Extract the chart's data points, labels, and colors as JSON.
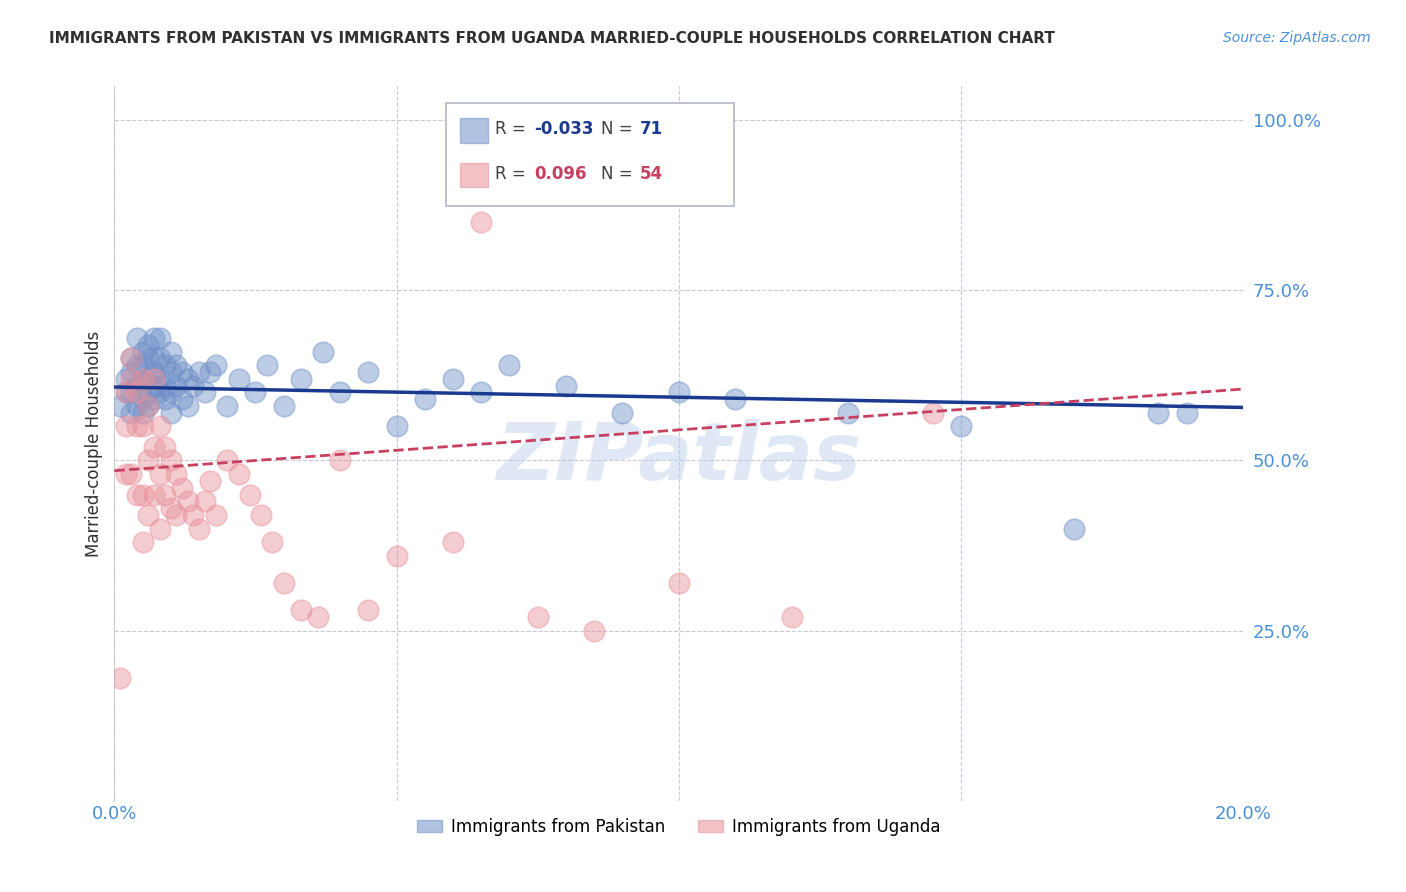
{
  "title": "IMMIGRANTS FROM PAKISTAN VS IMMIGRANTS FROM UGANDA MARRIED-COUPLE HOUSEHOLDS CORRELATION CHART",
  "source": "Source: ZipAtlas.com",
  "ylabel": "Married-couple Households",
  "xlim": [
    0.0,
    0.2
  ],
  "ylim": [
    0.0,
    1.05
  ],
  "yticks": [
    0.0,
    0.25,
    0.5,
    0.75,
    1.0
  ],
  "ytick_labels": [
    "",
    "25.0%",
    "50.0%",
    "75.0%",
    "100.0%"
  ],
  "xticks": [
    0.0,
    0.05,
    0.1,
    0.15,
    0.2
  ],
  "xtick_labels": [
    "0.0%",
    "",
    "",
    "",
    "20.0%"
  ],
  "series1_color": "#7090c8",
  "series2_color": "#e8909a",
  "trendline1_color": "#1a3a8f",
  "trendline2_color": "#c84060",
  "legend_label1": "Immigrants from Pakistan",
  "legend_label2": "Immigrants from Uganda",
  "R1": -0.033,
  "N1": 71,
  "R2": 0.096,
  "N2": 54,
  "watermark": "ZIPatlas",
  "background_color": "#ffffff",
  "grid_color": "#c8c8d8",
  "title_color": "#303030",
  "axis_label_color": "#4a90d9",
  "pakistan_x": [
    0.001,
    0.002,
    0.002,
    0.003,
    0.003,
    0.003,
    0.003,
    0.004,
    0.004,
    0.004,
    0.004,
    0.005,
    0.005,
    0.005,
    0.005,
    0.005,
    0.006,
    0.006,
    0.006,
    0.006,
    0.006,
    0.007,
    0.007,
    0.007,
    0.007,
    0.007,
    0.008,
    0.008,
    0.008,
    0.008,
    0.009,
    0.009,
    0.009,
    0.01,
    0.01,
    0.01,
    0.01,
    0.011,
    0.011,
    0.012,
    0.012,
    0.013,
    0.013,
    0.014,
    0.015,
    0.016,
    0.017,
    0.018,
    0.02,
    0.022,
    0.025,
    0.027,
    0.03,
    0.033,
    0.037,
    0.04,
    0.045,
    0.05,
    0.055,
    0.06,
    0.065,
    0.07,
    0.08,
    0.09,
    0.1,
    0.11,
    0.13,
    0.15,
    0.17,
    0.185,
    0.19
  ],
  "pakistan_y": [
    0.58,
    0.6,
    0.62,
    0.57,
    0.6,
    0.63,
    0.65,
    0.58,
    0.61,
    0.64,
    0.68,
    0.57,
    0.59,
    0.62,
    0.64,
    0.66,
    0.58,
    0.6,
    0.62,
    0.65,
    0.67,
    0.59,
    0.61,
    0.63,
    0.65,
    0.68,
    0.6,
    0.62,
    0.65,
    0.68,
    0.59,
    0.61,
    0.64,
    0.57,
    0.6,
    0.63,
    0.66,
    0.61,
    0.64,
    0.59,
    0.63,
    0.58,
    0.62,
    0.61,
    0.63,
    0.6,
    0.63,
    0.64,
    0.58,
    0.62,
    0.6,
    0.64,
    0.58,
    0.62,
    0.66,
    0.6,
    0.63,
    0.55,
    0.59,
    0.62,
    0.6,
    0.64,
    0.61,
    0.57,
    0.6,
    0.59,
    0.57,
    0.55,
    0.4,
    0.57,
    0.57
  ],
  "uganda_x": [
    0.001,
    0.002,
    0.002,
    0.002,
    0.003,
    0.003,
    0.003,
    0.004,
    0.004,
    0.004,
    0.005,
    0.005,
    0.005,
    0.005,
    0.006,
    0.006,
    0.006,
    0.007,
    0.007,
    0.007,
    0.008,
    0.008,
    0.008,
    0.009,
    0.009,
    0.01,
    0.01,
    0.011,
    0.011,
    0.012,
    0.013,
    0.014,
    0.015,
    0.016,
    0.017,
    0.018,
    0.02,
    0.022,
    0.024,
    0.026,
    0.028,
    0.03,
    0.033,
    0.036,
    0.04,
    0.045,
    0.05,
    0.06,
    0.065,
    0.075,
    0.085,
    0.1,
    0.12,
    0.145
  ],
  "uganda_y": [
    0.18,
    0.55,
    0.6,
    0.48,
    0.62,
    0.65,
    0.48,
    0.6,
    0.55,
    0.45,
    0.62,
    0.55,
    0.45,
    0.38,
    0.58,
    0.5,
    0.42,
    0.62,
    0.52,
    0.45,
    0.55,
    0.48,
    0.4,
    0.52,
    0.45,
    0.5,
    0.43,
    0.48,
    0.42,
    0.46,
    0.44,
    0.42,
    0.4,
    0.44,
    0.47,
    0.42,
    0.5,
    0.48,
    0.45,
    0.42,
    0.38,
    0.32,
    0.28,
    0.27,
    0.5,
    0.28,
    0.36,
    0.38,
    0.85,
    0.27,
    0.25,
    0.32,
    0.27,
    0.57
  ],
  "trendline1_intercept": 0.608,
  "trendline1_slope": -0.15,
  "trendline2_intercept": 0.485,
  "trendline2_slope": 0.6
}
